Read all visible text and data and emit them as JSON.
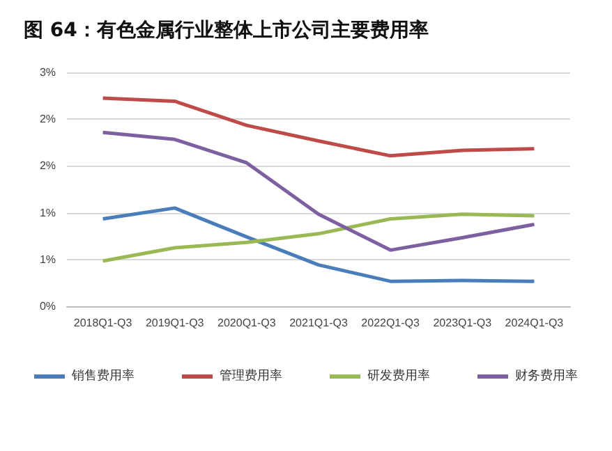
{
  "chart_data": {
    "type": "line",
    "title": "图 64：有色金属行业整体上市公司主要费用率",
    "categories": [
      "2018Q1-Q3",
      "2019Q1-Q3",
      "2020Q1-Q3",
      "2021Q1-Q3",
      "2022Q1-Q3",
      "2023Q1-Q3",
      "2024Q1-Q3"
    ],
    "series": [
      {
        "name": "销售费用率",
        "color": "#4a7ebb",
        "values": [
          1.12,
          1.26,
          0.89,
          0.53,
          0.32,
          0.33,
          0.32
        ]
      },
      {
        "name": "管理费用率",
        "color": "#be4b48",
        "values": [
          2.67,
          2.63,
          2.32,
          2.12,
          1.93,
          2.0,
          2.02
        ]
      },
      {
        "name": "研发费用率",
        "color": "#98b954",
        "values": [
          0.58,
          0.75,
          0.82,
          0.93,
          1.12,
          1.18,
          1.16
        ]
      },
      {
        "name": "财务费用率",
        "color": "#7d60a0",
        "values": [
          2.23,
          2.14,
          1.84,
          1.18,
          0.72,
          0.88,
          1.05
        ]
      }
    ],
    "ylim": [
      0,
      3
    ],
    "yticks": [
      {
        "value": 0,
        "label": "0%"
      },
      {
        "value": 0.6,
        "label": "1%"
      },
      {
        "value": 1.2,
        "label": "1%"
      },
      {
        "value": 1.8,
        "label": "2%"
      },
      {
        "value": 2.4,
        "label": "2%"
      },
      {
        "value": 3,
        "label": "3%"
      }
    ],
    "grid": "y",
    "legend": "bottom",
    "marker": "none",
    "line_style": "solid"
  }
}
